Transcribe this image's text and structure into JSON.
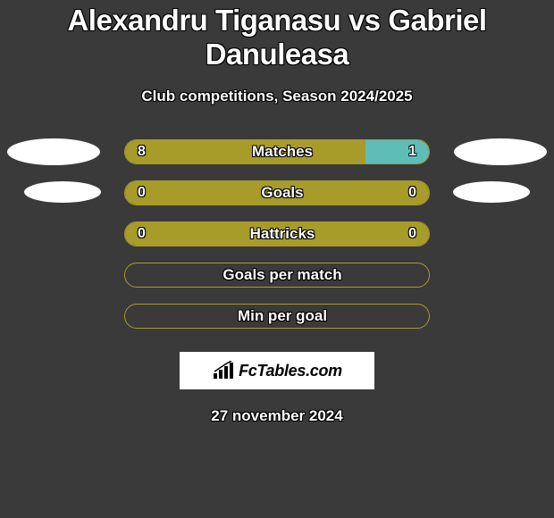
{
  "title": "Alexandru Tiganasu vs Gabriel Danuleasa",
  "subtitle": "Club competitions, Season 2024/2025",
  "colors": {
    "olive": "#a79b2a",
    "teal": "#5fbdb8",
    "bg": "#3a3a3a",
    "white": "#ffffff"
  },
  "stats": [
    {
      "label": "Matches",
      "left_value": "8",
      "right_value": "1",
      "left_pct": 79,
      "right_pct": 21,
      "left_color": "#a79b2a",
      "right_color": "#5fbdb8",
      "border_color": "#a79b2a",
      "show_left_ellipse": "lg",
      "show_right_ellipse": "lg"
    },
    {
      "label": "Goals",
      "left_value": "0",
      "right_value": "0",
      "left_pct": 100,
      "right_pct": 0,
      "left_color": "#a79b2a",
      "right_color": "#5fbdb8",
      "border_color": "#a79b2a",
      "show_left_ellipse": "sm",
      "show_right_ellipse": "sm"
    },
    {
      "label": "Hattricks",
      "left_value": "0",
      "right_value": "0",
      "left_pct": 100,
      "right_pct": 0,
      "left_color": "#a79b2a",
      "right_color": "#5fbdb8",
      "border_color": "#a79b2a",
      "show_left_ellipse": "none",
      "show_right_ellipse": "none"
    },
    {
      "label": "Goals per match",
      "left_value": "",
      "right_value": "",
      "left_pct": 0,
      "right_pct": 0,
      "left_color": "#a79b2a",
      "right_color": "#5fbdb8",
      "border_color": "#a79b2a",
      "show_left_ellipse": "none",
      "show_right_ellipse": "none"
    },
    {
      "label": "Min per goal",
      "left_value": "",
      "right_value": "",
      "left_pct": 0,
      "right_pct": 0,
      "left_color": "#a79b2a",
      "right_color": "#5fbdb8",
      "border_color": "#a79b2a",
      "show_left_ellipse": "none",
      "show_right_ellipse": "none"
    }
  ],
  "brand": "FcTables.com",
  "footer_date": "27 november 2024"
}
